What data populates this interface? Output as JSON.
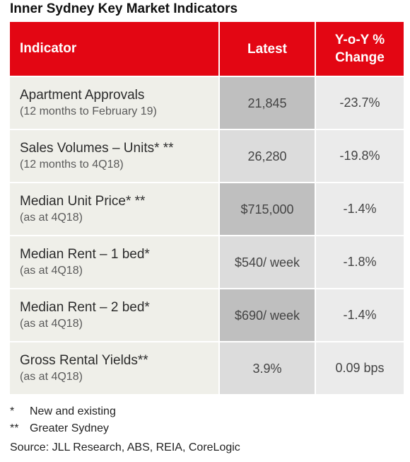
{
  "title": "Inner Sydney Key Market Indicators",
  "table": {
    "headers": {
      "indicator": "Indicator",
      "latest": "Latest",
      "yoy": "Y-o-Y % Change"
    },
    "rows": [
      {
        "name": "Apartment Approvals",
        "sub": "(12 months to February 19)",
        "latest": "21,845",
        "yoy": "-23.7%"
      },
      {
        "name": "Sales Volumes – Units* **",
        "sub": "(12 months to 4Q18)",
        "latest": "26,280",
        "yoy": "-19.8%"
      },
      {
        "name": "Median Unit Price* **",
        "sub": "(as at 4Q18)",
        "latest": "$715,000",
        "yoy": "-1.4%"
      },
      {
        "name": "Median Rent – 1 bed*",
        "sub": "(as at 4Q18)",
        "latest": "$540/ week",
        "yoy": "-1.8%"
      },
      {
        "name": "Median Rent – 2 bed*",
        "sub": "(as at 4Q18)",
        "latest": "$690/ week",
        "yoy": "-1.4%"
      },
      {
        "name": "Gross Rental Yields**",
        "sub": "(as at 4Q18)",
        "latest": "3.9%",
        "yoy": "0.09 bps"
      }
    ]
  },
  "footnotes": [
    {
      "mark": "*",
      "text": "New and existing"
    },
    {
      "mark": "**",
      "text": "Greater Sydney"
    }
  ],
  "source": "Source: JLL Research, ABS, REIA, CoreLogic",
  "colors": {
    "header_red": "#e30613",
    "indicator_cell": "#efefe9",
    "latest_dark": "#bfbfbf",
    "latest_light": "#dcdcdc",
    "yoy_cell": "#ebebeb"
  }
}
